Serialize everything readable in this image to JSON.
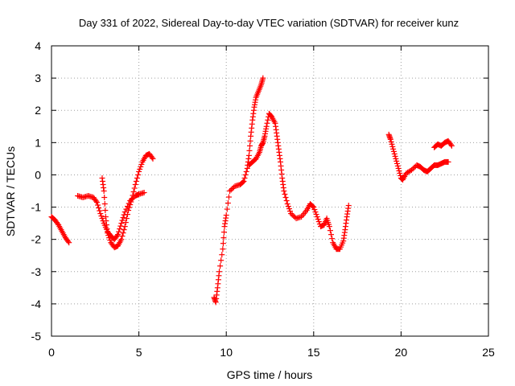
{
  "chart_data": {
    "type": "scatter",
    "title": "Day 331 of 2022, Sidereal Day-to-day VTEC variation (SDTVAR) for receiver kunz",
    "xlabel": "GPS time / hours",
    "ylabel": "SDTVAR / TECUs",
    "xlim": [
      0,
      25
    ],
    "ylim": [
      -5,
      4
    ],
    "x_ticks": [
      0,
      5,
      10,
      15,
      20,
      25
    ],
    "y_ticks": [
      -5,
      -4,
      -3,
      -2,
      -1,
      0,
      1,
      2,
      3,
      4
    ],
    "grid": true,
    "legend": "none",
    "marker": "plus",
    "color": "#ff0000",
    "series": [
      {
        "points": [
          [
            0.0,
            -1.3
          ],
          [
            0.2,
            -1.4
          ],
          [
            0.4,
            -1.55
          ],
          [
            0.6,
            -1.75
          ],
          [
            0.8,
            -1.95
          ],
          [
            1.0,
            -2.1
          ]
        ]
      },
      {
        "points": [
          [
            1.5,
            -0.65
          ],
          [
            1.8,
            -0.7
          ],
          [
            2.1,
            -0.65
          ],
          [
            2.4,
            -0.7
          ],
          [
            2.6,
            -0.85
          ],
          [
            2.8,
            -1.2
          ],
          [
            3.0,
            -1.5
          ],
          [
            3.2,
            -1.75
          ],
          [
            3.4,
            -1.9
          ],
          [
            3.6,
            -2.0
          ],
          [
            3.8,
            -1.85
          ],
          [
            4.0,
            -1.5
          ],
          [
            4.2,
            -1.15
          ],
          [
            4.5,
            -0.8
          ],
          [
            4.8,
            -0.65
          ],
          [
            5.0,
            -0.6
          ],
          [
            5.3,
            -0.55
          ]
        ]
      },
      {
        "points": [
          [
            2.9,
            -0.1
          ],
          [
            3.0,
            -0.5
          ],
          [
            3.1,
            -1.3
          ],
          [
            3.2,
            -1.8
          ],
          [
            3.4,
            -2.1
          ],
          [
            3.6,
            -2.25
          ],
          [
            3.8,
            -2.2
          ],
          [
            4.0,
            -2.0
          ],
          [
            4.2,
            -1.6
          ],
          [
            4.4,
            -1.1
          ],
          [
            4.6,
            -0.75
          ],
          [
            4.8,
            -0.3
          ],
          [
            5.0,
            0.1
          ],
          [
            5.2,
            0.4
          ],
          [
            5.4,
            0.6
          ],
          [
            5.6,
            0.65
          ],
          [
            5.8,
            0.5
          ]
        ]
      },
      {
        "points": [
          [
            9.3,
            -3.8
          ],
          [
            9.4,
            -3.95
          ],
          [
            9.5,
            -3.5
          ],
          [
            9.6,
            -3.0
          ],
          [
            9.8,
            -2.3
          ],
          [
            9.9,
            -1.6
          ],
          [
            10.0,
            -1.25
          ],
          [
            10.2,
            -0.5
          ],
          [
            10.5,
            -0.35
          ],
          [
            10.8,
            -0.3
          ],
          [
            11.0,
            -0.2
          ],
          [
            11.2,
            0.2
          ],
          [
            11.3,
            0.6
          ],
          [
            11.4,
            1.2
          ],
          [
            11.5,
            1.7
          ],
          [
            11.6,
            2.1
          ],
          [
            11.7,
            2.4
          ],
          [
            11.85,
            2.6
          ],
          [
            12.0,
            2.8
          ],
          [
            12.1,
            3.0
          ]
        ]
      },
      {
        "points": [
          [
            11.3,
            0.3
          ],
          [
            11.5,
            0.4
          ],
          [
            11.7,
            0.5
          ],
          [
            11.9,
            0.7
          ],
          [
            12.0,
            0.9
          ],
          [
            12.1,
            1.0
          ],
          [
            12.2,
            1.2
          ],
          [
            12.3,
            1.5
          ],
          [
            12.45,
            1.9
          ],
          [
            12.6,
            1.8
          ],
          [
            12.8,
            1.6
          ],
          [
            12.9,
            1.2
          ],
          [
            13.0,
            0.8
          ],
          [
            13.1,
            0.4
          ],
          [
            13.2,
            -0.1
          ],
          [
            13.3,
            -0.5
          ],
          [
            13.5,
            -0.9
          ],
          [
            13.7,
            -1.2
          ],
          [
            14.0,
            -1.35
          ],
          [
            14.3,
            -1.3
          ],
          [
            14.6,
            -1.1
          ],
          [
            14.8,
            -0.9
          ],
          [
            15.0,
            -1.0
          ],
          [
            15.2,
            -1.3
          ],
          [
            15.4,
            -1.6
          ],
          [
            15.6,
            -1.55
          ],
          [
            15.75,
            -1.35
          ],
          [
            15.9,
            -1.6
          ],
          [
            16.1,
            -2.1
          ],
          [
            16.3,
            -2.3
          ],
          [
            16.5,
            -2.3
          ],
          [
            16.7,
            -2.05
          ],
          [
            16.8,
            -1.7
          ],
          [
            16.9,
            -1.3
          ],
          [
            17.0,
            -0.95
          ]
        ]
      },
      {
        "points": [
          [
            19.3,
            1.25
          ],
          [
            19.4,
            1.1
          ],
          [
            19.55,
            0.8
          ],
          [
            19.7,
            0.5
          ],
          [
            19.85,
            0.2
          ],
          [
            20.0,
            -0.1
          ],
          [
            20.1,
            -0.15
          ],
          [
            20.3,
            0.05
          ],
          [
            20.6,
            0.15
          ],
          [
            20.9,
            0.3
          ],
          [
            21.1,
            0.25
          ],
          [
            21.3,
            0.15
          ],
          [
            21.5,
            0.1
          ],
          [
            21.7,
            0.2
          ],
          [
            21.9,
            0.3
          ],
          [
            22.1,
            0.3
          ],
          [
            22.3,
            0.35
          ],
          [
            22.5,
            0.4
          ],
          [
            22.7,
            0.4
          ]
        ]
      },
      {
        "points": [
          [
            21.9,
            0.85
          ],
          [
            22.1,
            0.95
          ],
          [
            22.3,
            0.9
          ],
          [
            22.5,
            1.0
          ],
          [
            22.7,
            1.05
          ],
          [
            22.9,
            0.9
          ]
        ]
      }
    ]
  }
}
